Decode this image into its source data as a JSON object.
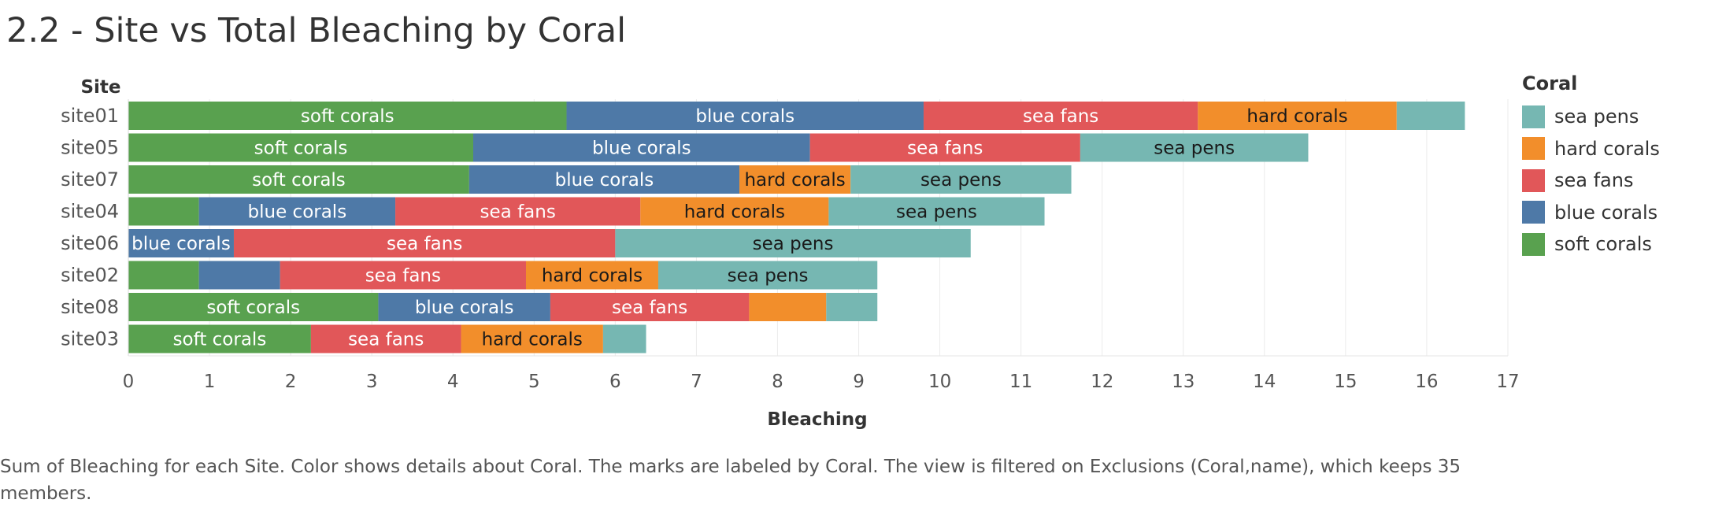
{
  "title": "2.2 - Site vs Total Bleaching by Coral",
  "caption": "Sum of Bleaching for each Site.  Color shows details about Coral.  The marks are labeled by Coral. The view is filtered on Exclusions (Coral,name), which keeps 35 members.",
  "legend": {
    "title": "Coral",
    "items": [
      {
        "label": "sea pens",
        "color": "#76b7b2"
      },
      {
        "label": "hard corals",
        "color": "#f28e2b"
      },
      {
        "label": "sea fans",
        "color": "#e15759"
      },
      {
        "label": "blue corals",
        "color": "#4e79a7"
      },
      {
        "label": "soft corals",
        "color": "#59a14f"
      }
    ]
  },
  "chart_data": {
    "type": "stacked-bar-horizontal",
    "title": "2.2 - Site vs Total Bleaching by Coral",
    "xlabel": "Bleaching",
    "ylabel": "Site",
    "xlim": [
      0,
      17
    ],
    "xticks": [
      0,
      1,
      2,
      3,
      4,
      5,
      6,
      7,
      8,
      9,
      10,
      11,
      12,
      13,
      14,
      15,
      16,
      17
    ],
    "grid": true,
    "categories": [
      "site01",
      "site05",
      "site07",
      "site04",
      "site06",
      "site02",
      "site08",
      "site03"
    ],
    "series": [
      {
        "name": "soft corals",
        "color": "#59a14f",
        "values": [
          5.4,
          4.25,
          4.2,
          0.87,
          0,
          0.87,
          3.08,
          2.25
        ],
        "labels": [
          "soft corals",
          "soft corals",
          "soft corals",
          "",
          "",
          "",
          "soft corals",
          "soft corals"
        ]
      },
      {
        "name": "blue corals",
        "color": "#4e79a7",
        "values": [
          4.4,
          4.15,
          3.33,
          2.42,
          1.3,
          1.0,
          2.12,
          0
        ],
        "labels": [
          "blue corals",
          "blue corals",
          "blue corals",
          "blue corals",
          "blue corals",
          "",
          "blue corals",
          ""
        ]
      },
      {
        "name": "sea fans",
        "color": "#e15759",
        "values": [
          3.38,
          3.33,
          0,
          3.02,
          4.7,
          3.03,
          2.45,
          1.85
        ],
        "labels": [
          "sea fans",
          "sea fans",
          "",
          "sea fans",
          "sea fans",
          "sea fans",
          "sea fans",
          "sea fans"
        ]
      },
      {
        "name": "hard corals",
        "color": "#f28e2b",
        "values": [
          2.45,
          0,
          1.37,
          2.32,
          0,
          1.63,
          0.95,
          1.75
        ],
        "labels": [
          "hard corals",
          "",
          "hard corals",
          "hard corals",
          "",
          "hard corals",
          "",
          "hard corals"
        ]
      },
      {
        "name": "sea pens",
        "color": "#76b7b2",
        "values": [
          0.84,
          2.81,
          2.72,
          2.66,
          4.38,
          2.7,
          0.63,
          0.53
        ],
        "labels": [
          "",
          "sea pens",
          "sea pens",
          "sea pens",
          "sea pens",
          "sea pens",
          "",
          ""
        ]
      }
    ]
  }
}
